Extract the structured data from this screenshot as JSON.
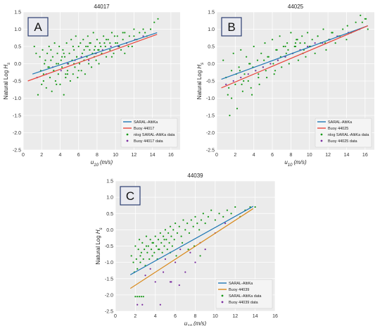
{
  "colors": {
    "plot_bg": "#ebebeb",
    "grid": "#ffffff",
    "tick_text": "#333333",
    "data_green": "#1a9a1a",
    "data_purple": "#7b2fa0",
    "saral_line": "#1f77b4",
    "buoy_line_ab": "#e8453c",
    "buoy_line_c": "#d98b1f",
    "panel_label_border": "#2c3e70",
    "panel_label_fill": "#e9eaf0"
  },
  "chart_data": [
    {
      "type": "scatter",
      "panel_label": "A",
      "title": "44017",
      "xlabel": "u10 (m/s)",
      "ylabel": "Natural Log Hs",
      "xlim": [
        0,
        17
      ],
      "ylim": [
        -2.5,
        1.5
      ],
      "xticks": [
        "0",
        "2",
        "4",
        "6",
        "8",
        "10",
        "12",
        "14",
        "16"
      ],
      "yticks": [
        "-2.5",
        "-2.0",
        "-1.5",
        "-1.0",
        "-0.5",
        "0.0",
        "0.5",
        "1.0",
        "1.5"
      ],
      "grid": true,
      "legend_position": "bottom-right",
      "lines": [
        {
          "name": "SARAL-AltiKa",
          "color_key": "saral_line",
          "x": [
            1,
            14.5
          ],
          "y": [
            -0.3,
            0.9
          ]
        },
        {
          "name": "Buoy 44017",
          "color_key": "buoy_line_ab",
          "x": [
            0.5,
            14.5
          ],
          "y": [
            -0.5,
            0.85
          ]
        }
      ],
      "scatter_series": [
        {
          "name": "nlog SARAL-AltiKa data",
          "color_key": "data_green",
          "x": [
            1.2,
            1.4,
            1.6,
            1.8,
            2.0,
            2.1,
            2.2,
            2.3,
            2.5,
            2.6,
            2.7,
            2.8,
            2.9,
            3.0,
            3.1,
            3.2,
            3.3,
            3.4,
            3.5,
            3.6,
            3.7,
            3.8,
            3.9,
            4.0,
            4.1,
            4.2,
            4.3,
            4.4,
            4.5,
            4.6,
            4.7,
            4.8,
            4.9,
            5.0,
            5.1,
            5.2,
            5.3,
            5.4,
            5.5,
            5.6,
            5.7,
            5.8,
            5.9,
            6.0,
            6.1,
            6.2,
            6.3,
            6.4,
            6.5,
            6.6,
            6.7,
            6.8,
            6.9,
            7.0,
            7.1,
            7.2,
            7.3,
            7.4,
            7.5,
            7.6,
            7.7,
            7.8,
            7.9,
            8.0,
            8.1,
            8.2,
            8.3,
            8.5,
            8.7,
            8.9,
            9.0,
            9.2,
            9.4,
            9.6,
            9.8,
            10.0,
            10.2,
            10.4,
            10.6,
            10.8,
            11.0,
            11.2,
            11.5,
            11.8,
            12.0,
            12.3,
            12.6,
            13.0,
            13.4,
            13.8,
            14.2,
            14.6,
            1.9,
            2.4,
            3.0,
            3.6,
            4.2,
            4.8,
            5.4,
            6.0,
            6.6,
            7.2,
            7.8,
            8.4,
            9.0,
            9.6,
            10.2,
            10.8,
            11.4,
            12.0,
            2.2,
            3.3,
            4.4,
            5.5,
            6.6,
            7.7,
            8.8,
            9.9,
            11.0,
            12.1,
            13.2,
            2.8,
            3.8,
            4.6,
            5.8,
            7.0,
            8.2,
            9.4
          ],
          "y": [
            0.5,
            0.3,
            -0.9,
            0.2,
            -0.6,
            0.4,
            -0.3,
            0.0,
            -0.7,
            0.3,
            -0.1,
            0.5,
            -0.4,
            0.1,
            -0.8,
            0.2,
            -0.2,
            0.6,
            -0.5,
            0.0,
            0.3,
            -0.3,
            0.5,
            -0.6,
            0.1,
            -0.1,
            0.4,
            -0.9,
            0.2,
            -0.4,
            0.6,
            -0.2,
            0.0,
            0.3,
            -0.5,
            0.7,
            0.1,
            -0.3,
            0.4,
            -0.1,
            0.8,
            0.2,
            -0.4,
            0.5,
            0.0,
            0.6,
            -0.2,
            0.3,
            0.7,
            0.1,
            -0.3,
            0.5,
            0.2,
            0.8,
            0.0,
            0.4,
            0.6,
            -0.1,
            0.3,
            0.9,
            0.2,
            0.5,
            0.1,
            0.7,
            0.4,
            0.0,
            0.6,
            0.3,
            0.8,
            0.5,
            0.2,
            0.7,
            0.4,
            0.9,
            0.3,
            0.6,
            0.8,
            0.5,
            0.4,
            0.7,
            0.9,
            0.6,
            0.8,
            0.5,
            1.0,
            0.7,
            0.9,
            1.0,
            0.8,
            1.0,
            1.2,
            1.3,
            -0.2,
            0.1,
            0.4,
            -0.6,
            0.2,
            -0.3,
            0.5,
            -0.2,
            0.4,
            0.6,
            0.3,
            0.5,
            0.7,
            0.2,
            0.6,
            0.9,
            0.5,
            0.8,
            -0.5,
            -0.2,
            0.3,
            0.0,
            0.1,
            0.4,
            0.6,
            0.8,
            0.3,
            0.7,
            0.9,
            -0.1,
            0.0,
            -0.3,
            0.2,
            0.5,
            0.4,
            0.6
          ]
        },
        {
          "name": "Buoy 44017 data",
          "color_key": "data_purple",
          "x": [
            1.5,
            2.5,
            3.2,
            4.1,
            4.8,
            5.6,
            6.3,
            7.1,
            7.9,
            8.6,
            9.5,
            10.3,
            11.2,
            12.1,
            13.0
          ],
          "y": [
            -0.4,
            -0.3,
            -0.1,
            -0.2,
            0.0,
            0.1,
            0.2,
            0.1,
            0.3,
            0.4,
            0.5,
            0.5,
            0.6,
            0.7,
            0.8
          ]
        }
      ]
    },
    {
      "type": "scatter",
      "panel_label": "B",
      "title": "44025",
      "xlabel": "u10 (m/s)",
      "ylabel": "Natural Log Hs",
      "xlim": [
        0,
        17
      ],
      "ylim": [
        -2.5,
        1.5
      ],
      "xticks": [
        "0",
        "2",
        "4",
        "6",
        "8",
        "10",
        "12",
        "14",
        "16"
      ],
      "yticks": [
        "-2.5",
        "-2.0",
        "-1.5",
        "-1.0",
        "-0.5",
        "0.0",
        "0.5",
        "1.0",
        "1.5"
      ],
      "grid": true,
      "legend_position": "bottom-right",
      "lines": [
        {
          "name": "SARAL-AltiKa",
          "color_key": "saral_line",
          "x": [
            0.5,
            16.3
          ],
          "y": [
            -0.45,
            1.1
          ]
        },
        {
          "name": "Buoy 44025",
          "color_key": "buoy_line_ab",
          "x": [
            0.5,
            16.3
          ],
          "y": [
            -0.7,
            1.1
          ]
        }
      ],
      "scatter_series": [
        {
          "name": "nlog SARAL-AltiKa data",
          "color_key": "data_green",
          "x": [
            0.7,
            1.0,
            1.2,
            1.4,
            1.6,
            1.8,
            2.0,
            2.2,
            2.4,
            2.6,
            2.8,
            3.0,
            3.2,
            3.4,
            3.6,
            3.8,
            4.0,
            4.2,
            4.4,
            4.6,
            4.8,
            5.0,
            5.2,
            5.4,
            5.6,
            5.8,
            6.0,
            6.2,
            6.4,
            6.6,
            6.8,
            7.0,
            7.2,
            7.4,
            7.6,
            7.8,
            8.0,
            8.2,
            8.4,
            8.6,
            8.8,
            9.0,
            9.2,
            9.4,
            9.6,
            9.8,
            10.0,
            10.3,
            10.6,
            10.9,
            11.2,
            11.5,
            11.8,
            12.1,
            12.4,
            12.8,
            13.2,
            13.6,
            14.0,
            14.5,
            15.0,
            15.5,
            16.0,
            16.3,
            1.3,
            2.1,
            2.9,
            3.7,
            4.5,
            5.3,
            6.1,
            6.9,
            7.7,
            8.5,
            9.3,
            10.1,
            10.9,
            11.7,
            12.5,
            13.3,
            14.1,
            2.5,
            3.5,
            4.5,
            5.5,
            6.5,
            7.5,
            8.5,
            9.5,
            1.6,
            2.7,
            3.9,
            5.1,
            6.3,
            7.4,
            8.7,
            15.7,
            16.1
          ],
          "y": [
            0.1,
            -0.4,
            -0.9,
            -1.5,
            -0.2,
            0.3,
            -0.6,
            -1.3,
            -0.1,
            0.4,
            -0.8,
            -0.3,
            0.2,
            -0.5,
            0.0,
            -0.9,
            0.5,
            -0.2,
            0.1,
            -0.6,
            0.3,
            -0.1,
            0.6,
            -0.4,
            0.2,
            0.0,
            0.7,
            -0.3,
            0.4,
            0.1,
            0.8,
            -0.1,
            0.5,
            0.2,
            0.6,
            0.0,
            0.9,
            0.3,
            0.5,
            0.7,
            0.1,
            0.6,
            0.8,
            0.4,
            0.2,
            0.9,
            0.5,
            0.7,
            0.3,
            0.8,
            0.6,
            1.0,
            0.4,
            0.7,
            0.9,
            0.6,
            0.8,
            1.0,
            0.7,
            0.9,
            1.2,
            1.4,
            1.3,
            1.0,
            -0.7,
            -0.3,
            -0.5,
            -0.7,
            -0.4,
            -0.2,
            0.0,
            0.2,
            0.4,
            0.6,
            0.3,
            0.5,
            0.8,
            0.6,
            0.9,
            0.8,
            1.1,
            -0.2,
            0.0,
            -0.3,
            0.2,
            0.4,
            0.3,
            0.5,
            0.6,
            -1.0,
            -0.6,
            -0.1,
            0.1,
            -0.2,
            0.5,
            0.7,
            1.2,
            1.3
          ]
        },
        {
          "name": "Buoy 44025 data",
          "color_key": "data_purple",
          "x": [
            1.0,
            1.8,
            2.6,
            3.4,
            4.2,
            5.0,
            5.8,
            6.6,
            7.4,
            8.2,
            9.0,
            9.8,
            10.6,
            11.4,
            12.2,
            13.0,
            14.2,
            15.4
          ],
          "y": [
            -0.6,
            -0.5,
            -0.4,
            -0.3,
            -0.2,
            -0.1,
            0.0,
            0.1,
            0.2,
            0.3,
            0.4,
            0.5,
            0.6,
            0.6,
            0.7,
            0.8,
            0.9,
            1.0
          ]
        }
      ]
    },
    {
      "type": "scatter",
      "panel_label": "C",
      "title": "44039",
      "xlabel": "u10 (m/s)",
      "ylabel": "Natural Log Hs",
      "xlim": [
        0,
        16
      ],
      "ylim": [
        -2.5,
        1.5
      ],
      "xticks": [
        "0",
        "2",
        "4",
        "6",
        "8",
        "10",
        "12",
        "14",
        "16"
      ],
      "yticks": [
        "-2.5",
        "-2.0",
        "-1.5",
        "-1.0",
        "-0.5",
        "0.0",
        "0.5",
        "1.0",
        "1.5"
      ],
      "grid": true,
      "legend_position": "bottom-right",
      "lines": [
        {
          "name": "SARAL-AltiKa",
          "color_key": "saral_line",
          "x": [
            1.5,
            13.8
          ],
          "y": [
            -1.38,
            0.72
          ]
        },
        {
          "name": "Buoy 44039",
          "color_key": "buoy_line_c",
          "x": [
            1.5,
            13.8
          ],
          "y": [
            -1.8,
            0.65
          ]
        }
      ],
      "scatter_series": [
        {
          "name": "SARAL-AltiKa data",
          "color_key": "data_green",
          "x": [
            1.6,
            1.8,
            2.0,
            2.1,
            2.2,
            2.3,
            2.4,
            2.5,
            2.6,
            2.7,
            2.8,
            2.9,
            3.0,
            3.1,
            3.2,
            3.3,
            3.4,
            3.5,
            3.6,
            3.7,
            3.8,
            3.9,
            4.0,
            4.1,
            4.2,
            4.3,
            4.4,
            4.5,
            4.6,
            4.7,
            4.8,
            4.9,
            5.0,
            5.1,
            5.2,
            5.3,
            5.4,
            5.5,
            5.6,
            5.7,
            5.8,
            5.9,
            6.0,
            6.2,
            6.4,
            6.6,
            6.8,
            7.0,
            7.2,
            7.4,
            7.6,
            7.8,
            8.0,
            8.2,
            8.4,
            8.6,
            8.8,
            9.0,
            9.3,
            9.6,
            10.0,
            10.4,
            10.8,
            11.2,
            11.6,
            12.0,
            12.5,
            13.0,
            13.5,
            14.0,
            1.9,
            2.5,
            3.1,
            3.7,
            4.3,
            4.9,
            5.5,
            6.1,
            6.7,
            7.3,
            7.9,
            8.5,
            2.0,
            2.2,
            2.4,
            2.6,
            2.8
          ],
          "y": [
            -0.8,
            -1.0,
            -0.5,
            -0.9,
            -1.2,
            -0.6,
            -0.3,
            -1.0,
            -0.7,
            -0.4,
            -0.9,
            -0.6,
            -1.1,
            -0.2,
            -0.7,
            -0.5,
            -0.9,
            -0.3,
            -0.6,
            -0.8,
            -0.4,
            -0.7,
            -0.2,
            -0.5,
            -0.9,
            -0.3,
            -0.6,
            -0.1,
            -0.4,
            -0.7,
            -0.2,
            -0.5,
            0.0,
            -0.3,
            -0.6,
            -0.1,
            -0.4,
            0.1,
            -0.2,
            -0.5,
            0.0,
            -0.3,
            0.2,
            -0.1,
            0.1,
            -0.2,
            0.3,
            0.0,
            0.2,
            -0.1,
            0.3,
            0.1,
            0.4,
            0.2,
            0.0,
            0.3,
            0.5,
            0.2,
            0.4,
            0.6,
            0.3,
            0.5,
            0.4,
            0.6,
            0.5,
            0.7,
            0.4,
            0.6,
            0.7,
            0.7,
            -1.3,
            -0.8,
            -0.5,
            -0.4,
            -0.6,
            -0.3,
            -0.7,
            -0.8,
            -0.4,
            -0.6,
            -0.5,
            -0.8,
            -2.05,
            -2.05,
            -2.05,
            -2.05,
            -2.05
          ]
        },
        {
          "name": "Buoy 44039 data",
          "color_key": "data_purple",
          "x": [
            2.2,
            2.7,
            3.0,
            3.5,
            4.0,
            4.5,
            5.0,
            5.5,
            6.0,
            6.5,
            7.0,
            7.5,
            8.0,
            8.5,
            9.0,
            10.0,
            11.0,
            4.8,
            5.6,
            6.4
          ],
          "y": [
            -2.3,
            -2.3,
            -1.4,
            -1.2,
            -1.6,
            -2.3,
            -0.9,
            -1.6,
            -1.0,
            -0.6,
            -1.3,
            -0.7,
            -1.0,
            -0.4,
            -0.6,
            -0.1,
            0.2,
            -1.3,
            -1.6,
            -1.7
          ]
        }
      ]
    }
  ]
}
